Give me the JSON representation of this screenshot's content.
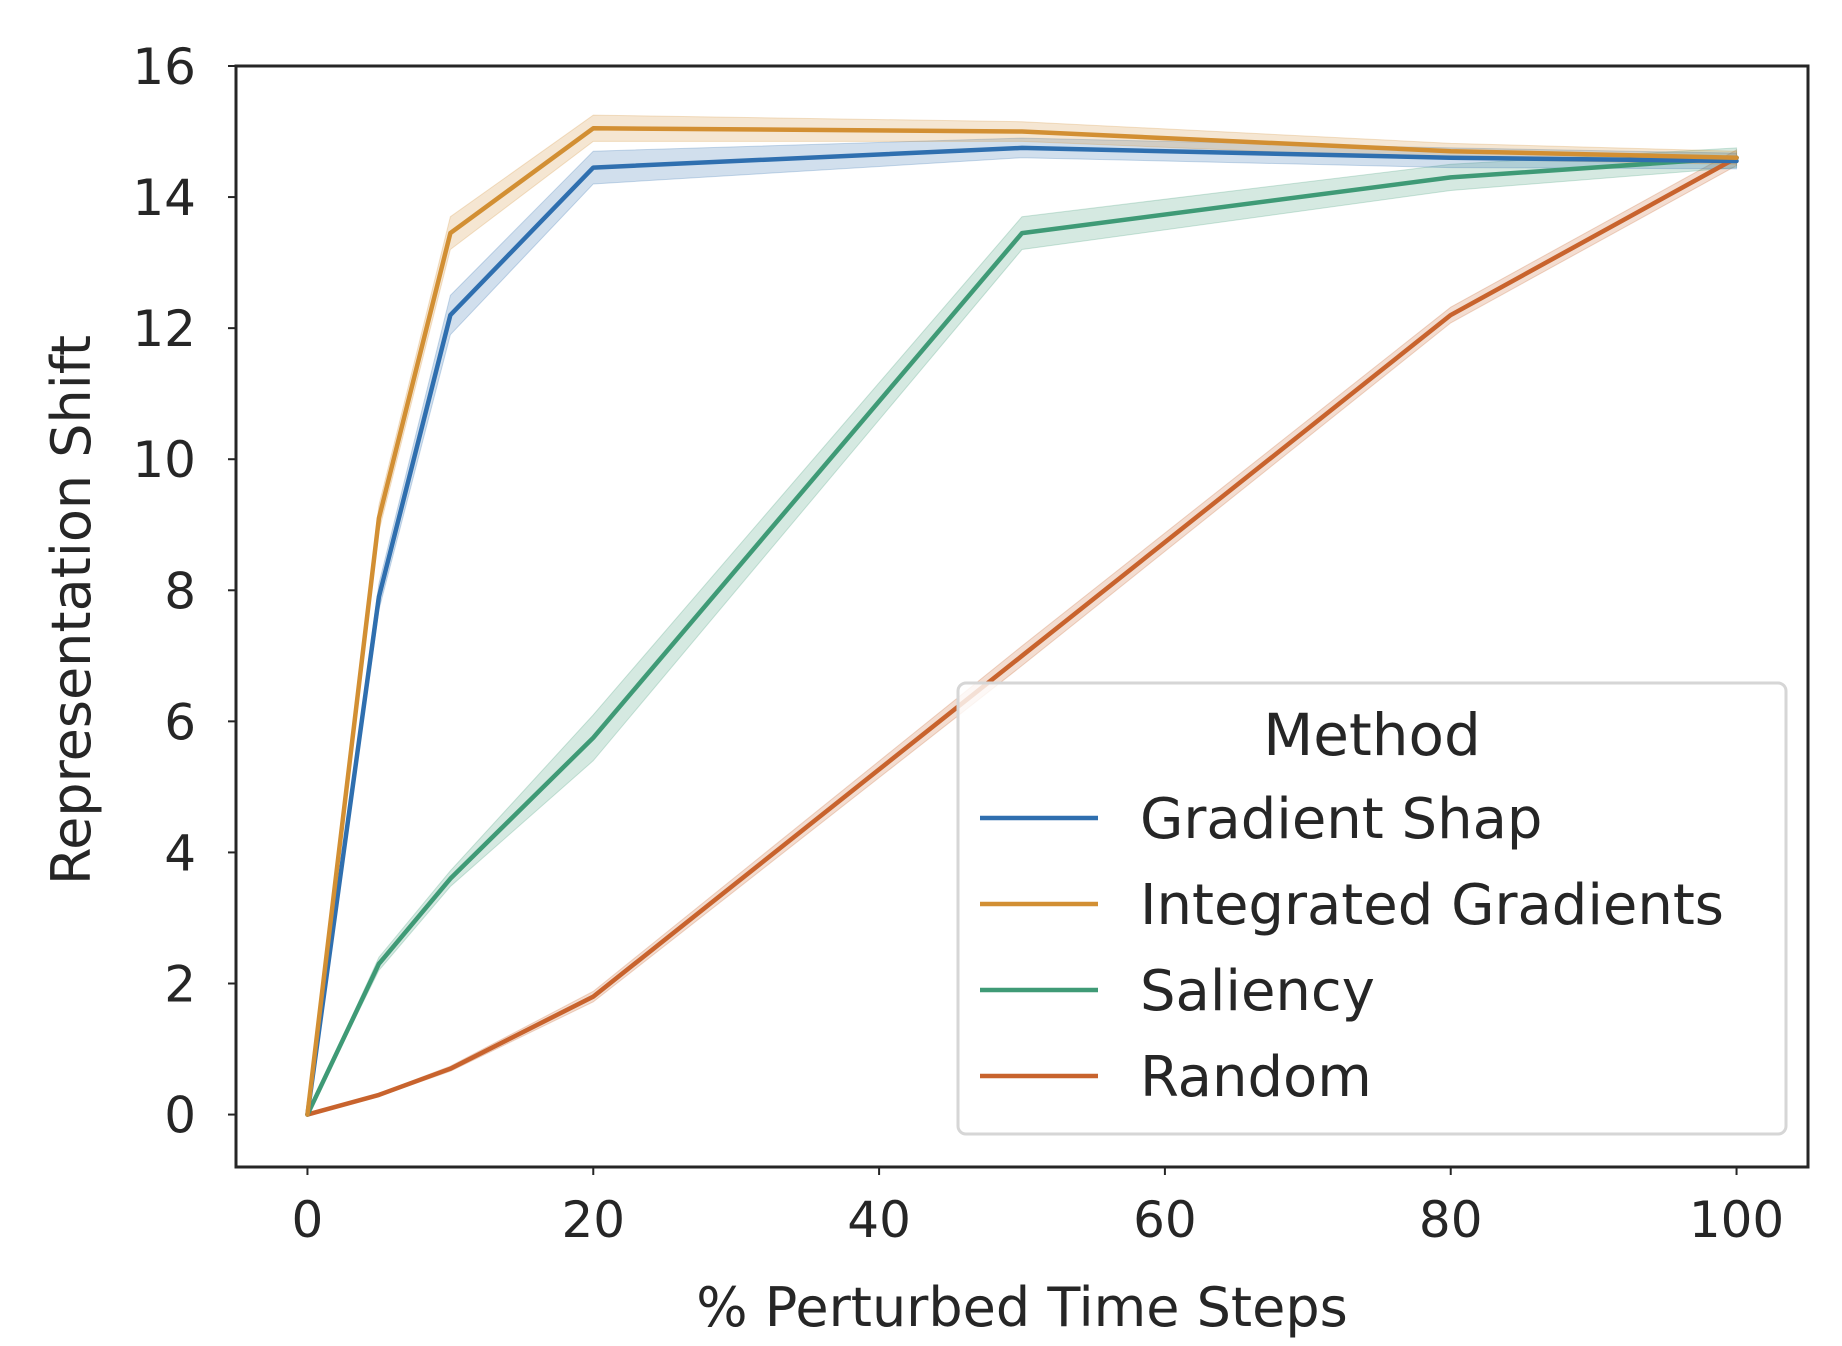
{
  "chart_data": {
    "type": "line",
    "title": "",
    "xlabel": "% Perturbed Time Steps",
    "ylabel": "Representation Shift",
    "xlim": [
      -5,
      105
    ],
    "ylim": [
      -0.8,
      16
    ],
    "xticks": [
      0,
      20,
      40,
      60,
      80,
      100
    ],
    "yticks": [
      0,
      2,
      4,
      6,
      8,
      10,
      12,
      14,
      16
    ],
    "grid": false,
    "legend": {
      "title": "Method",
      "placement": "lower-right"
    },
    "x": [
      0,
      5,
      10,
      20,
      50,
      80,
      100
    ],
    "series": [
      {
        "name": "Gradient Shap",
        "color": "#2f6faf",
        "values": [
          0,
          7.9,
          12.2,
          14.45,
          14.75,
          14.6,
          14.55
        ],
        "band": [
          0,
          0.2,
          0.3,
          0.25,
          0.15,
          0.15,
          0.12
        ]
      },
      {
        "name": "Integrated Gradients",
        "color": "#d28f33",
        "values": [
          0,
          9.1,
          13.45,
          15.05,
          15.0,
          14.7,
          14.6
        ],
        "band": [
          0,
          0.2,
          0.25,
          0.2,
          0.15,
          0.12,
          0.1
        ]
      },
      {
        "name": "Saliency",
        "color": "#3f9a76",
        "values": [
          0,
          2.3,
          3.6,
          5.75,
          13.45,
          14.3,
          14.6
        ],
        "band": [
          0,
          0.1,
          0.12,
          0.35,
          0.25,
          0.2,
          0.15
        ]
      },
      {
        "name": "Random",
        "color": "#c8632d",
        "values": [
          0,
          0.3,
          0.7,
          1.8,
          7.0,
          12.2,
          14.6
        ],
        "band": [
          0,
          0.02,
          0.04,
          0.08,
          0.15,
          0.12,
          0.12
        ]
      }
    ]
  }
}
